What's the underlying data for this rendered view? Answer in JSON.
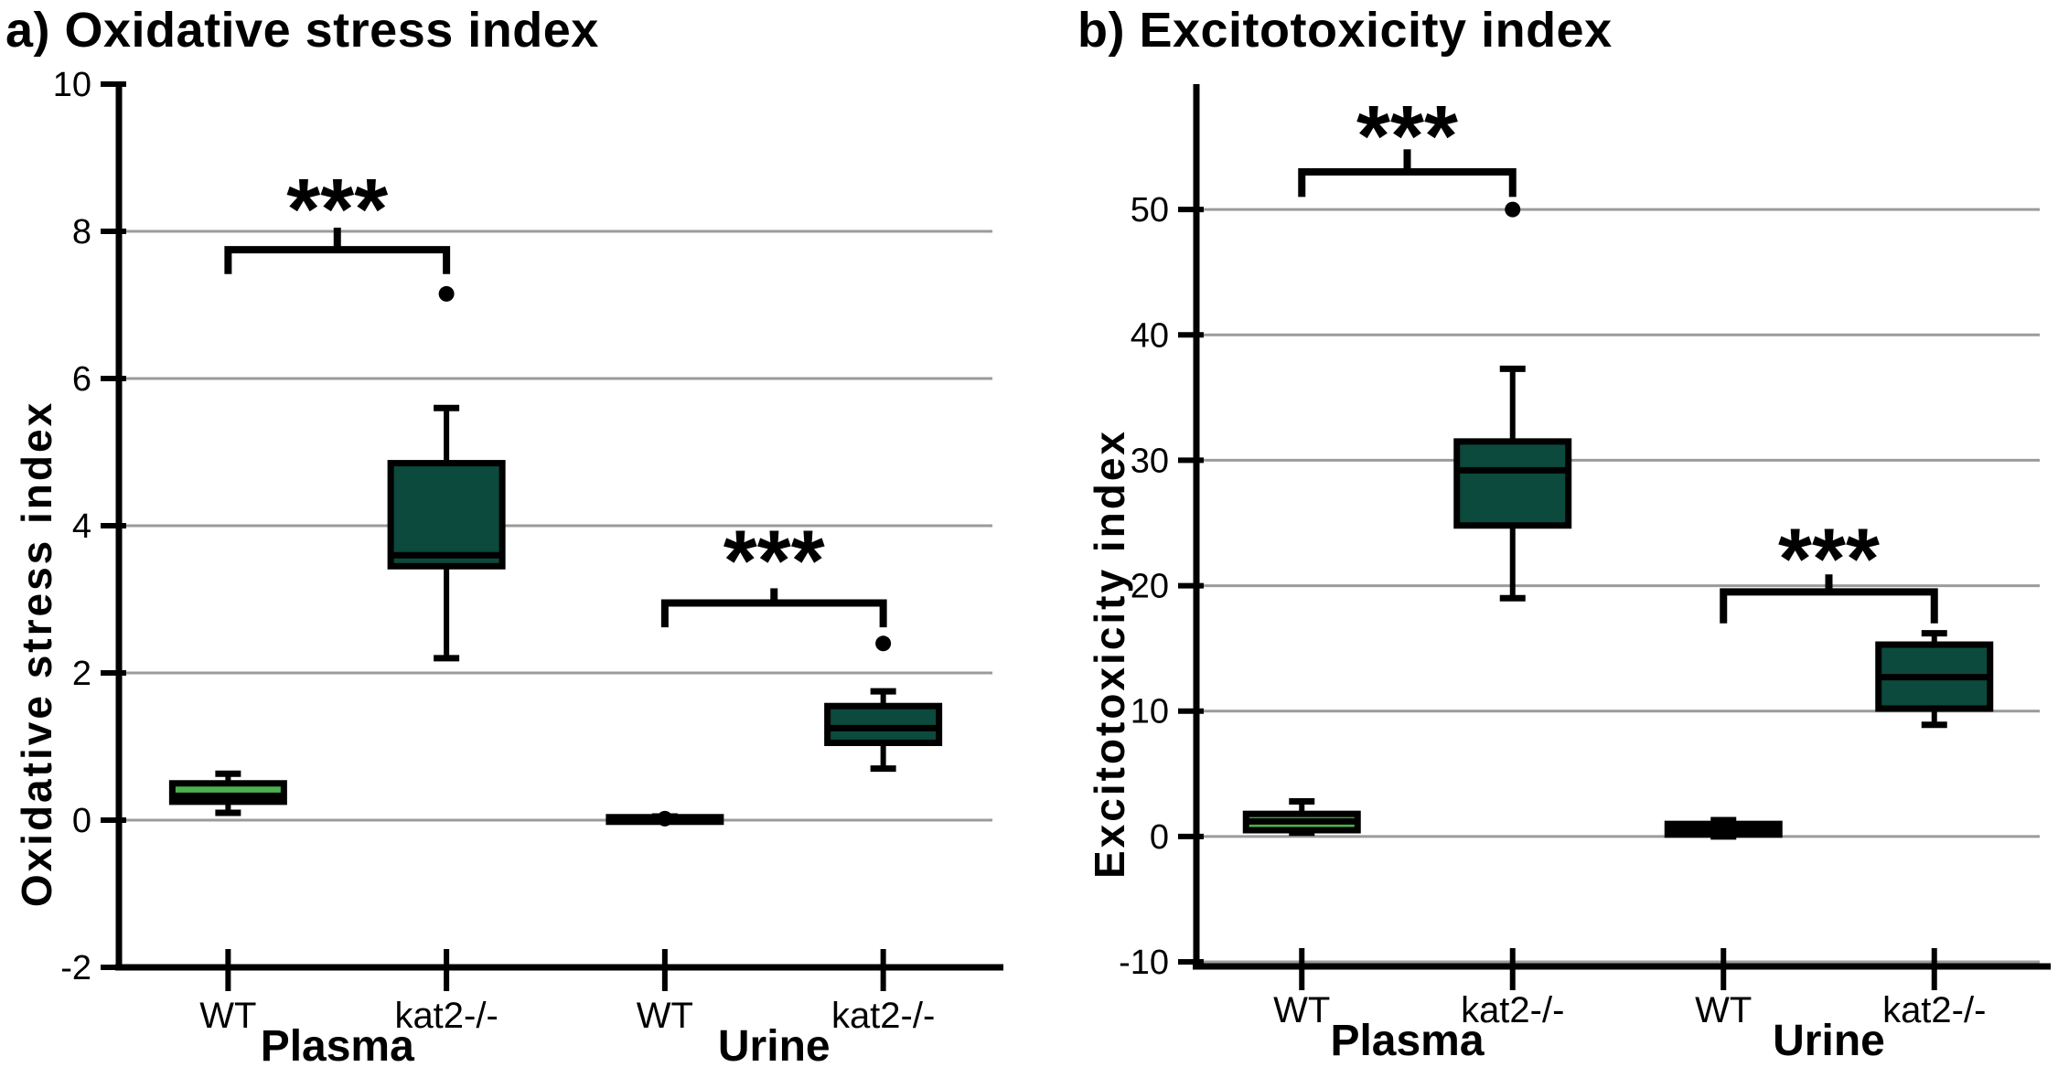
{
  "page": {
    "background": "#ffffff",
    "significance_marker": "***"
  },
  "chart_data": [
    {
      "type": "boxplot",
      "panel": "a",
      "title": "a) Oxidative stress index",
      "ylabel": "Oxidative stress index",
      "xlabel": "",
      "ylim": [
        -2,
        10
      ],
      "y_ticks": [
        -2,
        0,
        2,
        4,
        6,
        8,
        10
      ],
      "gridlines": [
        0,
        2,
        4,
        6,
        8
      ],
      "grid": true,
      "x_tick_labels": [
        "WT",
        "kat2-/-",
        "WT",
        "kat2-/-"
      ],
      "group_labels": [
        "Plasma",
        "Urine"
      ],
      "colors": {
        "wt_fill": "#4caf50",
        "kat2_fill": "#0b4a3d",
        "grid": "#9b9b9b",
        "line": "#000000"
      },
      "boxes": [
        {
          "group": "Plasma",
          "category": "WT",
          "fill": "#4caf50",
          "whisker_low": 0.1,
          "q1": 0.25,
          "median": 0.33,
          "q3": 0.5,
          "whisker_high": 0.63,
          "outliers": []
        },
        {
          "group": "Plasma",
          "category": "kat2-/-",
          "fill": "#0b4a3d",
          "whisker_low": 2.2,
          "q1": 3.45,
          "median": 3.6,
          "q3": 4.85,
          "whisker_high": 5.6,
          "outliers": [
            7.15
          ]
        },
        {
          "group": "Urine",
          "category": "WT",
          "fill": "#4caf50",
          "whisker_low": 0.0,
          "q1": 0.0,
          "median": 0.02,
          "q3": 0.04,
          "whisker_high": 0.05,
          "outliers": [
            0.02
          ]
        },
        {
          "group": "Urine",
          "category": "kat2-/-",
          "fill": "#0b4a3d",
          "whisker_low": 0.7,
          "q1": 1.05,
          "median": 1.25,
          "q3": 1.55,
          "whisker_high": 1.75,
          "outliers": [
            2.4
          ]
        }
      ],
      "brackets": [
        {
          "from": 0,
          "to": 1,
          "bar": 7.75,
          "drop": 7.42,
          "stub_top": 8.05,
          "stars_y": 8.5,
          "stars": "***"
        },
        {
          "from": 2,
          "to": 3,
          "bar": 2.95,
          "drop": 2.62,
          "stub_top": 3.15,
          "stars_y": 3.72,
          "stars": "***"
        }
      ]
    },
    {
      "type": "boxplot",
      "panel": "b",
      "title": "b) Excitotoxicity index",
      "ylabel": "Excitotoxicity index",
      "xlabel": "",
      "ylim": [
        -10,
        60
      ],
      "y_ticks": [
        -10,
        0,
        10,
        20,
        30,
        40,
        50
      ],
      "gridlines": [
        -10,
        0,
        10,
        20,
        30,
        40,
        50
      ],
      "grid": true,
      "x_tick_labels": [
        "WT",
        "kat2-/-",
        "WT",
        "kat2-/-"
      ],
      "group_labels": [
        "Plasma",
        "Urine"
      ],
      "colors": {
        "wt_fill": "#4caf50",
        "kat2_fill": "#0b4a3d",
        "grid": "#9b9b9b",
        "line": "#000000"
      },
      "boxes": [
        {
          "group": "Plasma",
          "category": "WT",
          "fill": "#4caf50",
          "whisker_low": 0.3,
          "q1": 0.5,
          "median": 1.2,
          "q3": 1.8,
          "whisker_high": 2.8,
          "outliers": []
        },
        {
          "group": "Plasma",
          "category": "kat2-/-",
          "fill": "#0b4a3d",
          "whisker_low": 19.0,
          "q1": 24.8,
          "median": 29.2,
          "q3": 31.5,
          "whisker_high": 37.3,
          "outliers": [
            50.0
          ]
        },
        {
          "group": "Urine",
          "category": "WT",
          "fill": "#4caf50",
          "whisker_low": 0.0,
          "q1": 0.15,
          "median": 0.55,
          "q3": 1.0,
          "whisker_high": 1.3,
          "outliers": []
        },
        {
          "group": "Urine",
          "category": "kat2-/-",
          "fill": "#0b4a3d",
          "whisker_low": 8.9,
          "q1": 10.2,
          "median": 12.7,
          "q3": 15.3,
          "whisker_high": 16.2,
          "outliers": []
        }
      ],
      "brackets": [
        {
          "from": 0,
          "to": 1,
          "bar": 53.0,
          "drop": 51.0,
          "stub_top": 54.8,
          "stars_y": 57.0,
          "stars": "***"
        },
        {
          "from": 2,
          "to": 3,
          "bar": 19.5,
          "drop": 17.0,
          "stub_top": 20.9,
          "stars_y": 23.3,
          "stars": "***"
        }
      ]
    }
  ]
}
